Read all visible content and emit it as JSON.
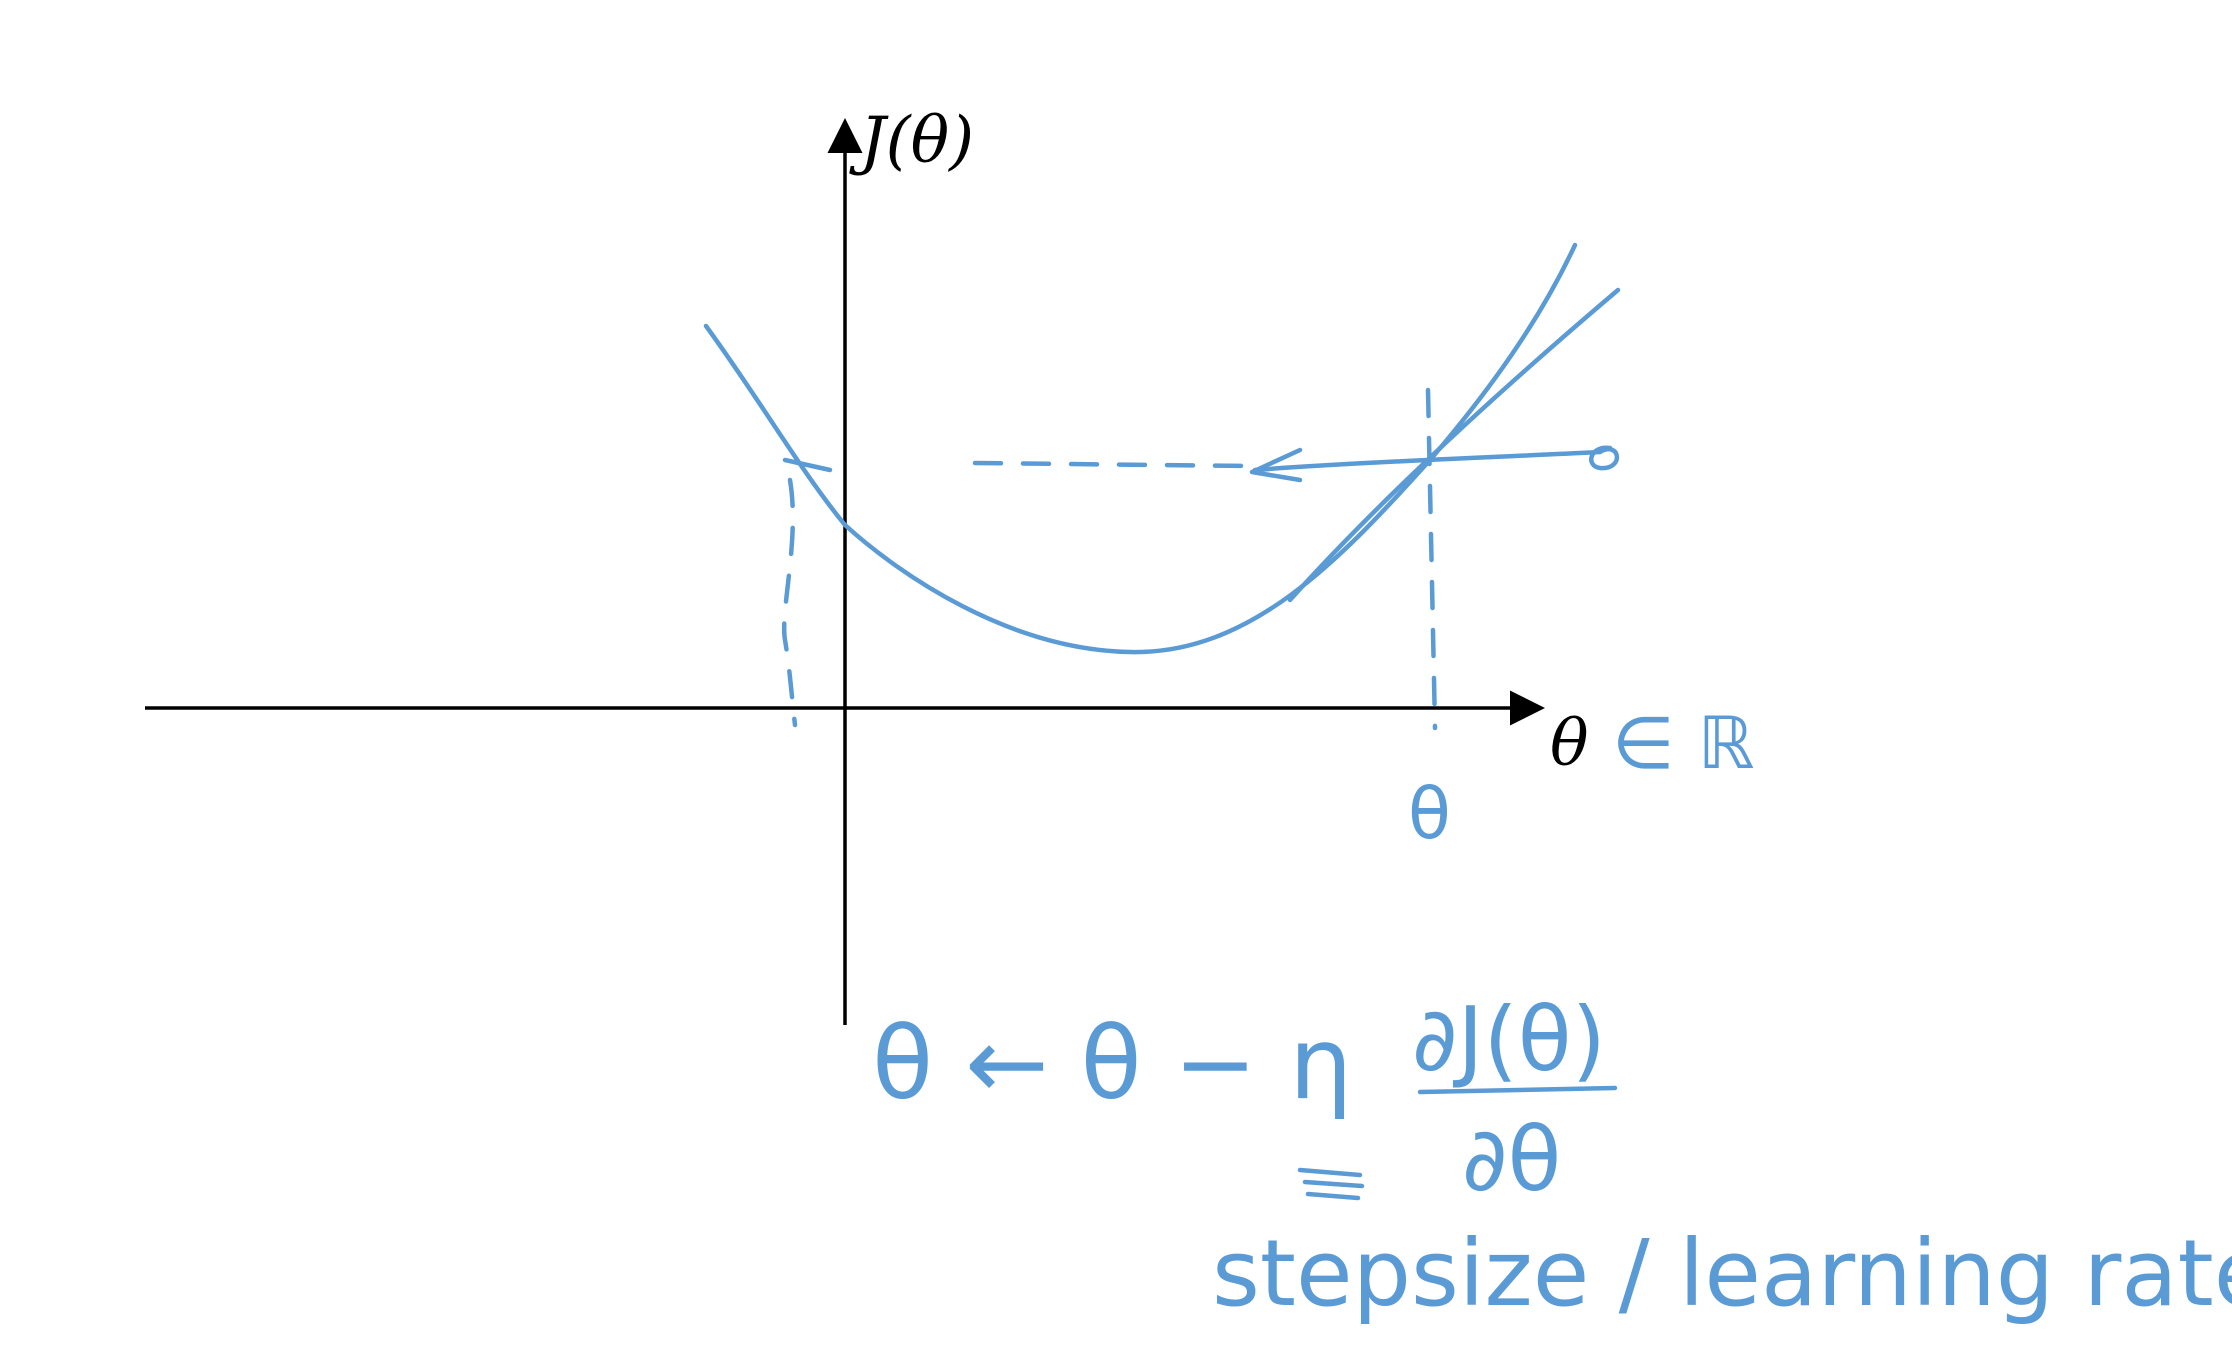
{
  "axes": {
    "y_label": "J(θ)",
    "x_label": "θ",
    "x_domain": "∈ ℝ"
  },
  "annotations": {
    "theta_mark": "θ",
    "update_rule_lhs": "θ ← θ − η",
    "derivative_numerator": "∂J(θ)",
    "derivative_denominator": "∂θ",
    "eta_note": "stepsize / learning rate"
  },
  "colors": {
    "axis": "#000000",
    "ink": "#5b9bd5"
  }
}
